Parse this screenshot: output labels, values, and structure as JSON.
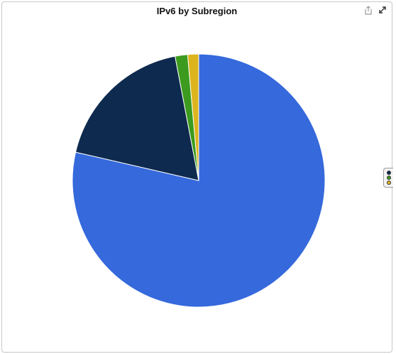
{
  "chart_data": {
    "type": "pie",
    "title": "IPv6 by Subregion",
    "slices": [
      {
        "value": 78.6,
        "color": "#3569dc"
      },
      {
        "value": 18.4,
        "color": "#0e2a4e"
      },
      {
        "value": 1.6,
        "color": "#3c9b1e"
      },
      {
        "value": 1.4,
        "color": "#dcb41e"
      }
    ],
    "legend": "collapsed-right"
  },
  "toolbar": {
    "icons": [
      "export-icon",
      "expand-icon"
    ]
  }
}
